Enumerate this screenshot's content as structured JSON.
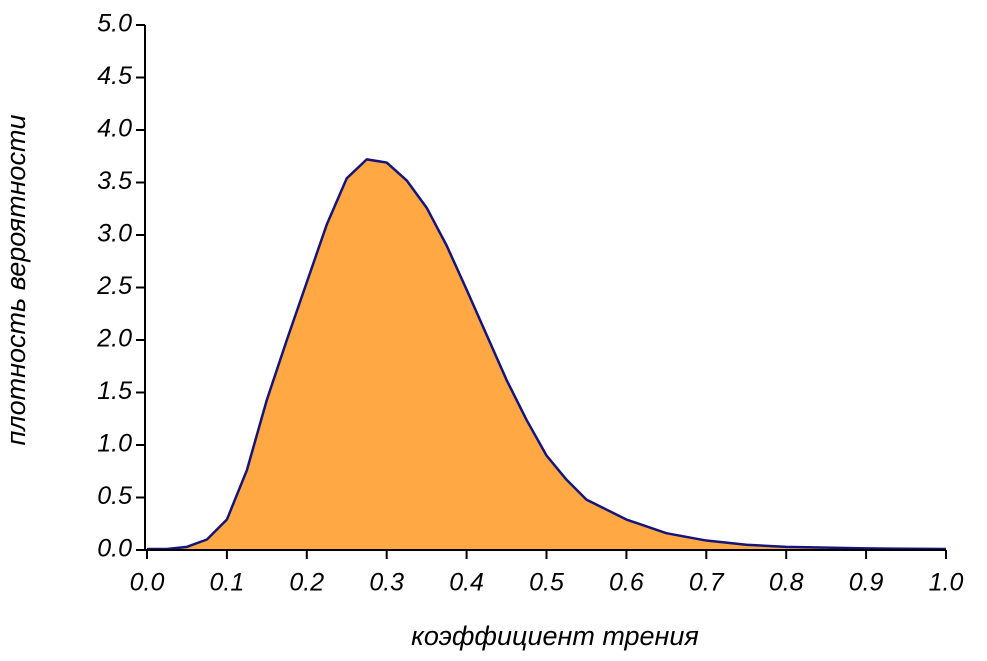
{
  "chart_data": {
    "type": "area",
    "x_label": "коэффициент трения",
    "y_label": "плотность вероятности",
    "x": [
      0,
      0.025,
      0.05,
      0.075,
      0.1,
      0.125,
      0.15,
      0.175,
      0.2,
      0.225,
      0.25,
      0.275,
      0.3,
      0.325,
      0.35,
      0.375,
      0.4,
      0.425,
      0.45,
      0.475,
      0.5,
      0.525,
      0.55,
      0.6,
      0.65,
      0.7,
      0.75,
      0.8,
      0.9,
      1.0
    ],
    "series": [
      {
        "color": "#ffa844",
        "line_color": "#14147a",
        "values": [
          0.01,
          0.01,
          0.03,
          0.1,
          0.29,
          0.76,
          1.43,
          2.0,
          2.55,
          3.1,
          3.54,
          3.72,
          3.69,
          3.52,
          3.26,
          2.9,
          2.48,
          2.05,
          1.62,
          1.24,
          0.9,
          0.67,
          0.48,
          0.29,
          0.16,
          0.09,
          0.05,
          0.03,
          0.015,
          0.01
        ]
      }
    ],
    "xlim": [
      0,
      1.0
    ],
    "ylim": [
      0,
      5.0
    ],
    "xticks": [
      {
        "value": 0,
        "label": "0.0"
      },
      0.1,
      0.2,
      0.3,
      0.4,
      0.5,
      0.6,
      0.7,
      0.8,
      0.9,
      {
        "value": 1,
        "label": "1.0"
      }
    ],
    "yticks": [
      {
        "value": 0,
        "label": "0.0"
      },
      0.5,
      {
        "value": 1,
        "label": "1.0"
      },
      1.5,
      {
        "value": 2,
        "label": "2.0"
      },
      2.5,
      {
        "value": 3,
        "label": "3.0"
      },
      3.5,
      {
        "value": 4,
        "label": "4.0"
      },
      4.5,
      {
        "value": 5,
        "label": "5.0"
      }
    ]
  }
}
